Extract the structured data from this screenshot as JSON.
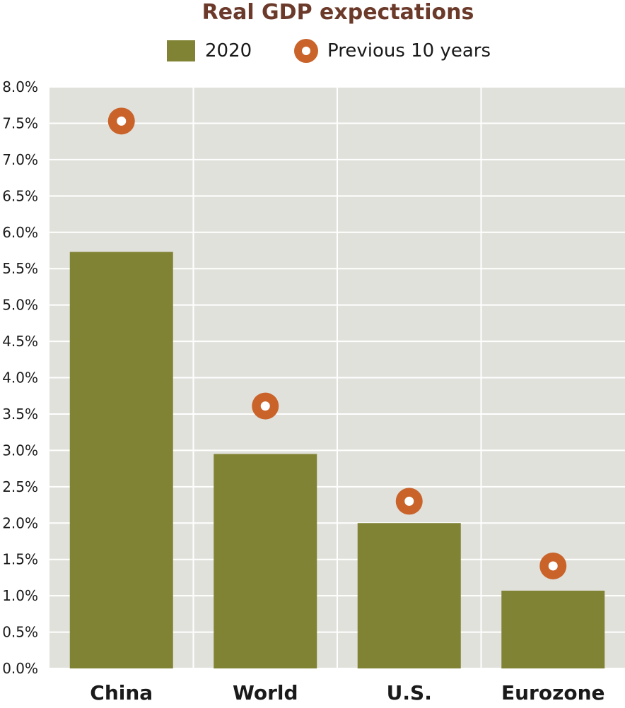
{
  "colors": {
    "title": "#6b3a2a",
    "bar": "#818334",
    "marker": "#c9632a",
    "marker_inner": "#ffffff",
    "plot_bg": "#e1e1dc",
    "grid": "#ffffff",
    "text": "#1a1a1a"
  },
  "chart_data": {
    "type": "bar",
    "title": "Real GDP expectations",
    "categories": [
      "China",
      "World",
      "U.S.",
      "Eurozone"
    ],
    "series": [
      {
        "name": "2020",
        "mark": "bar",
        "values": [
          5.73,
          2.95,
          2.0,
          1.07
        ]
      },
      {
        "name": "Previous 10 years",
        "mark": "circle-marker",
        "values": [
          7.53,
          3.61,
          2.3,
          1.41
        ]
      }
    ],
    "ylim": [
      0,
      8.0
    ],
    "yticks": [
      "0.0%",
      "0.5%",
      "1.0%",
      "1.5%",
      "2.0%",
      "2.5%",
      "3.0%",
      "3.5%",
      "4.0%",
      "4.5%",
      "5.0%",
      "5.5%",
      "6.0%",
      "6.5%",
      "7.0%",
      "7.5%",
      "8.0%"
    ],
    "grid": true,
    "legend_position": "top-center"
  }
}
